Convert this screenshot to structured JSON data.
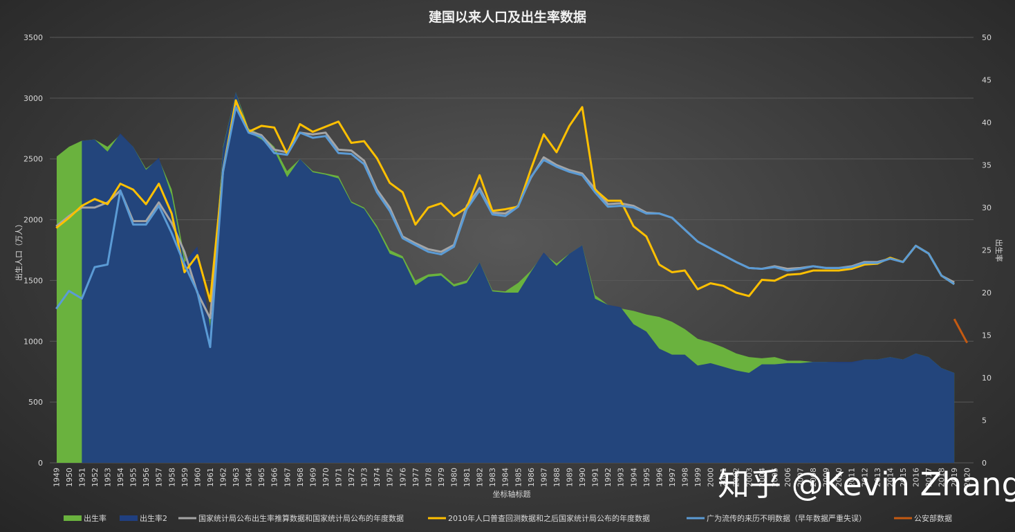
{
  "chart_data": {
    "type": "area+line",
    "title": "建国以来人口及出生率数据",
    "xlabel": "坐标轴标题",
    "ylabel_left": "出生人口（万人）",
    "ylabel_right": "出生率",
    "ylim_left": [
      0,
      3500
    ],
    "yticks_left": [
      "0",
      "500",
      "1000",
      "1500",
      "2000",
      "2500",
      "3000",
      "3500"
    ],
    "ylim_right": [
      0,
      50
    ],
    "yticks_right": [
      "0",
      "5",
      "10",
      "15",
      "20",
      "25",
      "30",
      "35",
      "40",
      "45",
      "50"
    ],
    "grid": true,
    "legend_position": "bottom",
    "categories": [
      "1949",
      "1950",
      "1951",
      "1952",
      "1953",
      "1954",
      "1955",
      "1956",
      "1957",
      "1958",
      "1959",
      "1960",
      "1961",
      "1962",
      "1963",
      "1964",
      "1965",
      "1966",
      "1967",
      "1968",
      "1969",
      "1970",
      "1971",
      "1972",
      "1973",
      "1974",
      "1975",
      "1976",
      "1977",
      "1978",
      "1979",
      "1980",
      "1981",
      "1982",
      "1983",
      "1984",
      "1985",
      "1986",
      "1987",
      "1988",
      "1989",
      "1990",
      "1991",
      "1992",
      "1993",
      "1994",
      "1995",
      "1996",
      "1997",
      "1998",
      "1999",
      "2000",
      "2001",
      "2002",
      "2003",
      "2004",
      "2005",
      "2006",
      "2007",
      "2008",
      "2009",
      "2010",
      "2011",
      "2012",
      "2013",
      "2014",
      "2015",
      "2016",
      "2017",
      "2018",
      "2019",
      "2020"
    ],
    "series": [
      {
        "name": "出生率",
        "kind": "area",
        "axis": "left",
        "color": "#6ab23e",
        "values": [
          2520,
          2600,
          2650,
          2660,
          2600,
          2700,
          2600,
          2420,
          2500,
          2250,
          1700,
          1400,
          1200,
          2600,
          3050,
          2750,
          2700,
          2600,
          2400,
          2500,
          2400,
          2380,
          2360,
          2150,
          2100,
          1950,
          1750,
          1700,
          1500,
          1550,
          1560,
          1470,
          1500,
          1650,
          1420,
          1410,
          1480,
          1580,
          1720,
          1640,
          1720,
          1790,
          1380,
          1300,
          1270,
          1250,
          1220,
          1200,
          1160,
          1100,
          1020,
          990,
          950,
          900,
          870,
          860,
          870,
          840,
          840,
          830,
          830,
          820,
          820,
          850,
          850,
          870,
          850,
          900,
          870,
          780,
          740,
          null
        ]
      },
      {
        "name": "出生率2",
        "kind": "area",
        "axis": "left",
        "color": "#203f7f",
        "values": [
          null,
          null,
          2650,
          2660,
          2560,
          2710,
          2600,
          2410,
          2510,
          2200,
          1650,
          1780,
          1120,
          2590,
          3050,
          2720,
          2660,
          2570,
          2350,
          2500,
          2390,
          2370,
          2340,
          2140,
          2090,
          1930,
          1720,
          1680,
          1460,
          1530,
          1540,
          1450,
          1480,
          1650,
          1410,
          1400,
          1400,
          1570,
          1730,
          1620,
          1720,
          1790,
          1350,
          1300,
          1280,
          1140,
          1080,
          940,
          890,
          890,
          800,
          820,
          790,
          760,
          740,
          810,
          810,
          820,
          820,
          830,
          830,
          830,
          830,
          850,
          850,
          870,
          850,
          900,
          870,
          780,
          740,
          null
        ]
      },
      {
        "name": "国家统计局公布出生率推算数据和国家统计局公布的年度数据",
        "kind": "line",
        "axis": "right",
        "color": "#a5a5a5",
        "values": [
          27.8,
          29.0,
          30.0,
          30.0,
          30.6,
          32.0,
          28.4,
          28.4,
          30.6,
          28.2,
          24.8,
          20.0,
          17.0,
          34.4,
          42.5,
          39.0,
          38.5,
          36.8,
          36.5,
          38.8,
          38.6,
          38.8,
          36.8,
          36.7,
          35.5,
          32.1,
          30.0,
          26.6,
          25.8,
          25.1,
          24.8,
          25.6,
          30.2,
          32.3,
          29.4,
          29.3,
          30.2,
          33.5,
          35.9,
          35.0,
          34.4,
          34.0,
          32.2,
          30.4,
          30.5,
          30.2,
          29.4,
          29.3,
          28.8,
          27.4,
          26.0,
          25.2,
          24.4,
          23.6,
          22.9,
          22.8,
          23.1,
          22.8,
          22.9,
          23.1,
          22.9,
          22.9,
          23.1,
          23.6,
          23.6,
          24.0,
          23.6,
          25.5,
          24.6,
          22.0,
          21.2,
          null
        ]
      },
      {
        "name": "2010年人口普查回测数据和之后国家统计局公布的年度数据",
        "kind": "line",
        "axis": "right",
        "color": "#ffc000",
        "values": [
          27.6,
          28.8,
          30.2,
          31.0,
          30.4,
          32.8,
          32.1,
          30.4,
          32.8,
          29.3,
          22.4,
          24.4,
          19.0,
          34.2,
          42.6,
          38.9,
          39.6,
          39.4,
          36.3,
          39.8,
          38.9,
          39.5,
          40.1,
          37.6,
          37.8,
          35.8,
          32.9,
          31.8,
          28.0,
          30.0,
          30.5,
          29.0,
          30.0,
          33.8,
          29.6,
          29.8,
          30.1,
          34.5,
          38.6,
          36.5,
          39.6,
          41.8,
          32.1,
          30.8,
          30.8,
          27.8,
          26.6,
          23.3,
          22.4,
          22.6,
          20.4,
          21.1,
          20.8,
          20.0,
          19.6,
          21.5,
          21.4,
          22.1,
          22.2,
          22.6,
          22.6,
          22.6,
          22.8,
          23.3,
          23.4,
          24.1,
          23.6,
          25.5,
          24.6,
          22.0,
          21.0,
          null
        ]
      },
      {
        "name": "广为流传的来历不明数据（早年数据严重失误）",
        "kind": "line",
        "axis": "right",
        "color": "#5b9bd5",
        "values": [
          18.1,
          20.2,
          19.3,
          23.0,
          23.3,
          32.0,
          28.0,
          28.0,
          30.2,
          27.0,
          23.3,
          20.1,
          13.6,
          34.2,
          41.8,
          38.8,
          38.3,
          36.4,
          36.2,
          38.8,
          38.2,
          38.4,
          36.4,
          36.3,
          35.1,
          31.8,
          29.6,
          26.4,
          25.6,
          24.8,
          24.5,
          25.4,
          29.8,
          32.0,
          29.2,
          29.0,
          30.1,
          33.6,
          35.6,
          34.8,
          34.2,
          33.8,
          31.8,
          30.1,
          30.2,
          30.0,
          29.3,
          29.3,
          28.8,
          27.4,
          26.0,
          25.2,
          24.4,
          23.6,
          22.9,
          22.8,
          23.0,
          22.6,
          22.8,
          23.1,
          22.9,
          22.9,
          23.0,
          23.5,
          23.5,
          24.0,
          23.6,
          25.5,
          24.6,
          22.0,
          21.0,
          null
        ]
      },
      {
        "name": "公安部数据",
        "kind": "line",
        "axis": "right",
        "color": "#c55a11",
        "values": [
          null,
          null,
          null,
          null,
          null,
          null,
          null,
          null,
          null,
          null,
          null,
          null,
          null,
          null,
          null,
          null,
          null,
          null,
          null,
          null,
          null,
          null,
          null,
          null,
          null,
          null,
          null,
          null,
          null,
          null,
          null,
          null,
          null,
          null,
          null,
          null,
          null,
          null,
          null,
          null,
          null,
          null,
          null,
          null,
          null,
          null,
          null,
          null,
          null,
          null,
          null,
          null,
          null,
          null,
          null,
          null,
          null,
          null,
          null,
          null,
          null,
          null,
          null,
          null,
          null,
          null,
          null,
          null,
          null,
          null,
          16.9,
          14.1
        ]
      }
    ]
  },
  "watermark": "知乎 @Kevin Zhang"
}
